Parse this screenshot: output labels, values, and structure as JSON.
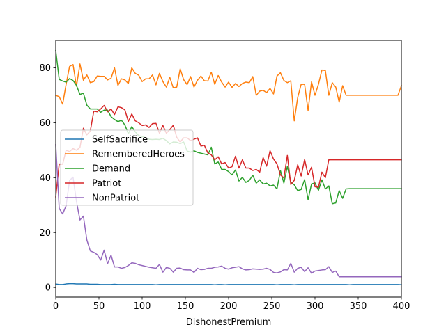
{
  "chart_data": {
    "type": "line",
    "title": "",
    "xlabel": "DishonestPremium",
    "ylabel": "",
    "xlim": [
      0,
      400
    ],
    "ylim": [
      -3.5,
      90
    ],
    "x_ticks": [
      0,
      50,
      100,
      150,
      200,
      250,
      300,
      350,
      400
    ],
    "y_ticks": [
      0,
      20,
      40,
      60,
      80
    ],
    "grid": false,
    "legend_position": "center-left",
    "x": [
      0,
      4,
      8,
      12,
      16,
      20,
      24,
      28,
      32,
      36,
      40,
      44,
      48,
      52,
      56,
      60,
      64,
      68,
      72,
      76,
      80,
      84,
      88,
      92,
      96,
      100,
      104,
      108,
      112,
      116,
      120,
      124,
      128,
      132,
      136,
      140,
      144,
      148,
      152,
      156,
      160,
      164,
      168,
      172,
      176,
      180,
      184,
      188,
      192,
      196,
      200,
      204,
      208,
      212,
      216,
      220,
      224,
      228,
      232,
      236,
      240,
      244,
      248,
      252,
      256,
      260,
      264,
      268,
      272,
      276,
      280,
      284,
      288,
      292,
      296,
      300,
      304,
      308,
      312,
      316,
      320,
      324,
      328,
      332,
      336,
      340,
      344,
      348,
      352,
      356,
      360,
      364,
      368,
      372,
      376,
      380,
      384,
      388,
      392,
      396,
      400
    ],
    "series": [
      {
        "name": "SelfSacrifice",
        "color": "#1f77b4",
        "values": [
          1.3,
          1.1,
          1.1,
          1.3,
          1.4,
          1.4,
          1.3,
          1.3,
          1.3,
          1.3,
          1.2,
          1.2,
          1.2,
          1.1,
          1.1,
          1.1,
          1.1,
          1.2,
          1.1,
          1.1,
          1.1,
          1.1,
          1.1,
          1.1,
          1.1,
          1.1,
          1.1,
          1.1,
          1.1,
          1.0,
          1.1,
          1.1,
          1.1,
          1.1,
          1.1,
          1.1,
          1.1,
          1.1,
          1.1,
          1.1,
          1.1,
          1.1,
          1.1,
          1.1,
          1.1,
          1.1,
          1.0,
          1.1,
          1.1,
          1.0,
          1.1,
          1.1,
          1.1,
          1.1,
          1.1,
          1.1,
          1.1,
          1.1,
          1.1,
          1.1,
          1.1,
          1.1,
          1.1,
          1.1,
          1.0,
          1.1,
          1.1,
          1.1,
          1.1,
          1.0,
          1.1,
          1.1,
          1.1,
          1.1,
          1.1,
          1.1,
          1.1,
          1.1,
          1.1,
          1.1,
          1.1,
          1.1,
          1.1,
          1.1,
          1.1,
          1.0,
          1.1,
          1.1,
          1.1,
          1.1,
          1.1,
          1.1,
          1.1,
          1.1,
          1.1,
          1.1,
          1.1,
          1.1,
          1.1,
          1.1,
          1.0
        ]
      },
      {
        "name": "RememberedHeroes",
        "color": "#ff7f0e",
        "values": [
          70.0,
          69.5,
          66.8,
          74.0,
          80.5,
          81.2,
          73.3,
          81.4,
          75.5,
          77.4,
          74.6,
          75.0,
          77.0,
          76.9,
          76.9,
          75.6,
          76.2,
          80.0,
          73.6,
          76.0,
          75.6,
          74.3,
          80.0,
          78.0,
          77.3,
          75.0,
          76.0,
          76.0,
          77.4,
          73.8,
          78.0,
          75.0,
          73.0,
          76.5,
          72.7,
          73.0,
          79.6,
          75.7,
          73.9,
          76.8,
          73.0,
          75.5,
          77.0,
          75.3,
          75.2,
          78.4,
          74.0,
          77.2,
          74.8,
          73.0,
          74.8,
          72.9,
          74.3,
          73.2,
          74.3,
          74.8,
          74.6,
          76.8,
          70.0,
          71.5,
          71.8,
          71.0,
          72.5,
          70.5,
          77.0,
          78.2,
          75.4,
          74.6,
          75.3,
          60.7,
          69.2,
          74.0,
          74.0,
          64.5,
          74.9,
          70.0,
          74.0,
          79.2,
          79.0,
          70.0,
          74.6,
          73.0,
          67.5,
          73.5,
          70.0,
          70.0,
          70.0,
          70.0,
          70.0,
          70.0,
          70.0,
          70.0,
          70.0,
          70.0,
          70.0,
          70.0,
          70.0,
          70.0,
          70.0,
          70.0,
          73.5
        ]
      },
      {
        "name": "Demand",
        "color": "#2ca02c",
        "values": [
          86.3,
          75.8,
          75.2,
          74.8,
          76.1,
          75.4,
          73.6,
          70.3,
          70.8,
          66.4,
          65.0,
          65.0,
          65.0,
          63.8,
          64.6,
          64.6,
          62.2,
          61.2,
          60.4,
          60.9,
          59.2,
          56.0,
          58.6,
          56.7,
          55.3,
          55.0,
          54.5,
          54.0,
          53.9,
          54.0,
          53.9,
          54.3,
          53.5,
          52.3,
          53.0,
          52.9,
          52.4,
          53.0,
          49.7,
          49.3,
          49.8,
          49.2,
          48.9,
          48.6,
          48.3,
          51.1,
          45.0,
          45.7,
          43.0,
          43.0,
          42.2,
          41.0,
          42.8,
          38.8,
          40.1,
          38.3,
          39.0,
          40.9,
          38.0,
          39.2,
          37.7,
          38.0,
          37.0,
          37.3,
          35.9,
          42.6,
          38.0,
          44.1,
          38.3,
          37.4,
          35.3,
          35.7,
          39.3,
          32.0,
          37.7,
          38.1,
          35.4,
          39.2,
          35.9,
          37.0,
          30.5,
          30.8,
          35.3,
          32.5,
          35.9,
          36.0,
          36.0,
          36.0,
          36.0,
          36.0,
          36.0,
          36.0,
          36.0,
          36.0,
          36.0,
          36.0,
          36.0,
          36.0,
          36.0,
          36.0,
          36.0
        ]
      },
      {
        "name": "Patriot",
        "color": "#d62728",
        "values": [
          33.0,
          45.0,
          44.9,
          50.0,
          49.5,
          50.6,
          50.0,
          51.0,
          58.0,
          55.6,
          57.0,
          64.2,
          64.0,
          65.0,
          66.3,
          64.0,
          65.0,
          63.0,
          65.8,
          65.5,
          64.7,
          60.5,
          63.2,
          60.7,
          60.0,
          59.0,
          59.2,
          58.3,
          59.7,
          59.8,
          56.2,
          59.0,
          56.2,
          57.5,
          59.1,
          54.7,
          53.0,
          54.5,
          54.5,
          53.5,
          54.0,
          54.5,
          51.5,
          51.8,
          49.0,
          48.3,
          46.5,
          47.6,
          45.0,
          45.5,
          43.5,
          44.0,
          47.8,
          43.5,
          46.5,
          43.5,
          43.5,
          42.6,
          43.0,
          42.0,
          47.3,
          44.2,
          49.8,
          46.8,
          45.0,
          41.0,
          39.9,
          48.1,
          37.5,
          39.0,
          44.7,
          40.6,
          46.6,
          41.0,
          43.8,
          36.7,
          36.5,
          42.0,
          40.0,
          46.5,
          46.5,
          46.5,
          46.5,
          46.5,
          46.5,
          46.5,
          46.5,
          46.5,
          46.5,
          46.5,
          46.5,
          46.5,
          46.5,
          46.5,
          46.5,
          46.5,
          46.5,
          46.5,
          46.5,
          46.5,
          46.5
        ]
      },
      {
        "name": "NonPatriot",
        "color": "#9467bd",
        "values": [
          52.0,
          28.8,
          26.8,
          29.8,
          39.0,
          40.2,
          31.3,
          24.6,
          26.0,
          17.3,
          13.3,
          12.8,
          12.0,
          10.0,
          13.6,
          8.7,
          11.8,
          7.5,
          7.5,
          7.0,
          7.3,
          8.0,
          9.0,
          8.8,
          8.3,
          8.0,
          7.7,
          7.4,
          7.2,
          7.0,
          8.4,
          5.6,
          7.3,
          7.0,
          5.6,
          7.0,
          7.1,
          6.5,
          6.4,
          6.4,
          5.5,
          7.0,
          6.5,
          6.6,
          7.0,
          7.0,
          7.4,
          7.5,
          7.8,
          7.0,
          6.7,
          7.2,
          7.4,
          7.6,
          6.8,
          6.4,
          6.5,
          6.8,
          6.7,
          6.6,
          6.7,
          7.0,
          6.6,
          5.5,
          5.3,
          5.7,
          6.5,
          6.4,
          8.8,
          5.6,
          7.0,
          7.4,
          5.8,
          7.2,
          5.2,
          6.0,
          6.2,
          6.4,
          6.5,
          7.6,
          5.5,
          6.0,
          3.9,
          3.9,
          3.9,
          3.9,
          3.9,
          3.9,
          3.9,
          3.9,
          3.9,
          3.9,
          3.9,
          3.9,
          3.9,
          3.9,
          3.9,
          3.9,
          3.9,
          3.9,
          3.9
        ]
      }
    ]
  }
}
